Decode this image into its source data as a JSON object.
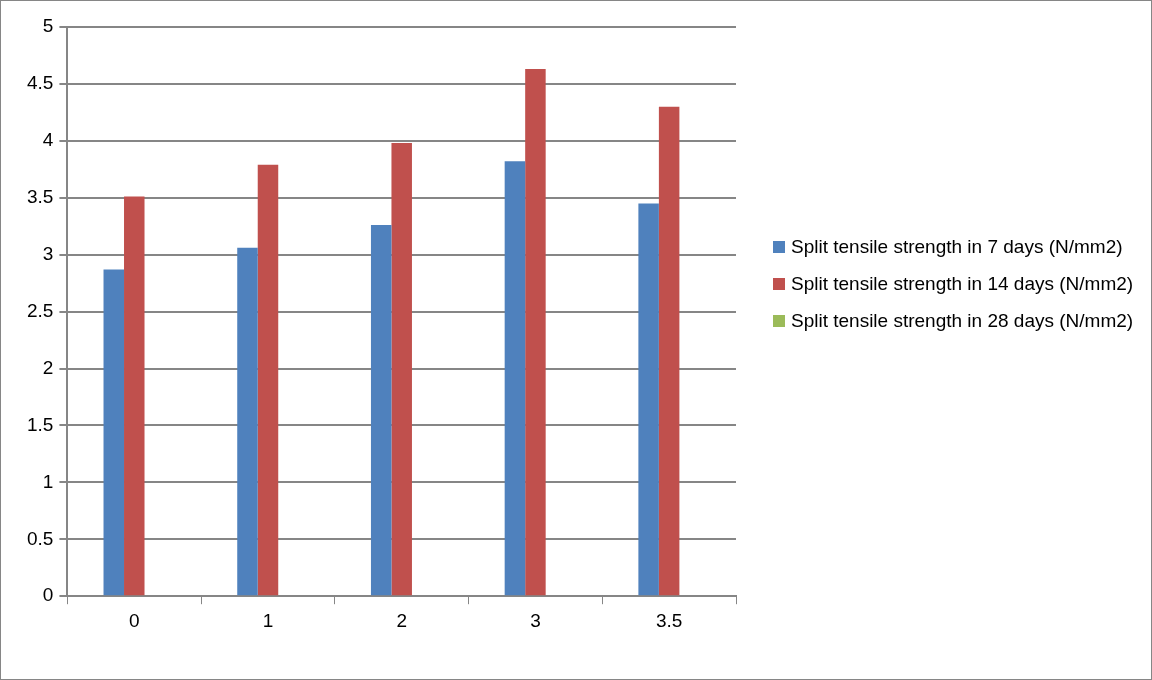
{
  "chart_data": {
    "type": "bar",
    "categories": [
      "0",
      "1",
      "2",
      "3",
      "3.5"
    ],
    "series": [
      {
        "name": "Split tensile strength in 7 days (N/mm2)",
        "color": "#4f81bd",
        "values": [
          2.87,
          3.06,
          3.26,
          3.82,
          3.45
        ]
      },
      {
        "name": "Split tensile strength in 14 days (N/mm2)",
        "color": "#c0504d",
        "values": [
          3.51,
          3.79,
          3.98,
          4.63,
          4.3
        ]
      },
      {
        "name": "Split tensile strength in 28 days (N/mm2)",
        "color": "#9bbb59",
        "values": [
          null,
          null,
          null,
          null,
          null
        ]
      }
    ],
    "ylim": [
      0,
      5
    ],
    "yticks": [
      0,
      0.5,
      1,
      1.5,
      2,
      2.5,
      3,
      3.5,
      4,
      4.5,
      5
    ],
    "grid": "y",
    "legend": "right"
  }
}
